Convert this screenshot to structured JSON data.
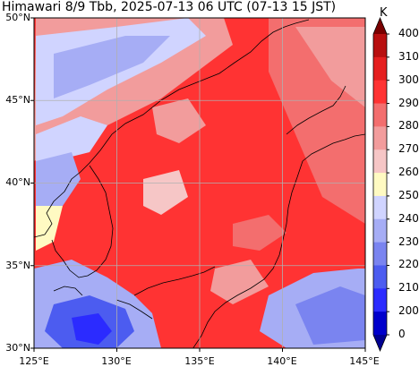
{
  "title": "Himawari 8/9 Tbb, 2025-07-13 06 UTC (07-13 15 JST)",
  "colorbar": {
    "unit": "K",
    "ticks": [
      "400",
      "310",
      "300",
      "290",
      "280",
      "270",
      "260",
      "250",
      "240",
      "230",
      "220",
      "210",
      "200",
      "0"
    ],
    "colors": [
      "#7a0000",
      "#b80f0f",
      "#e51f1f",
      "#ff3333",
      "#f36e6e",
      "#f29c9c",
      "#f6c6c6",
      "#fffac2",
      "#d0d4ff",
      "#a6adf5",
      "#7a84f0",
      "#4c5cf0",
      "#2b2bff",
      "#0000cc",
      "#000091"
    ]
  },
  "map": {
    "lat_labels": [
      "50°N",
      "45°N",
      "40°N",
      "35°N",
      "30°N"
    ],
    "lon_labels": [
      "125°E",
      "130°E",
      "135°E",
      "140°E",
      "145°E"
    ],
    "extent": {
      "lon_min": 125,
      "lon_max": 145,
      "lat_min": 30,
      "lat_max": 50
    }
  }
}
